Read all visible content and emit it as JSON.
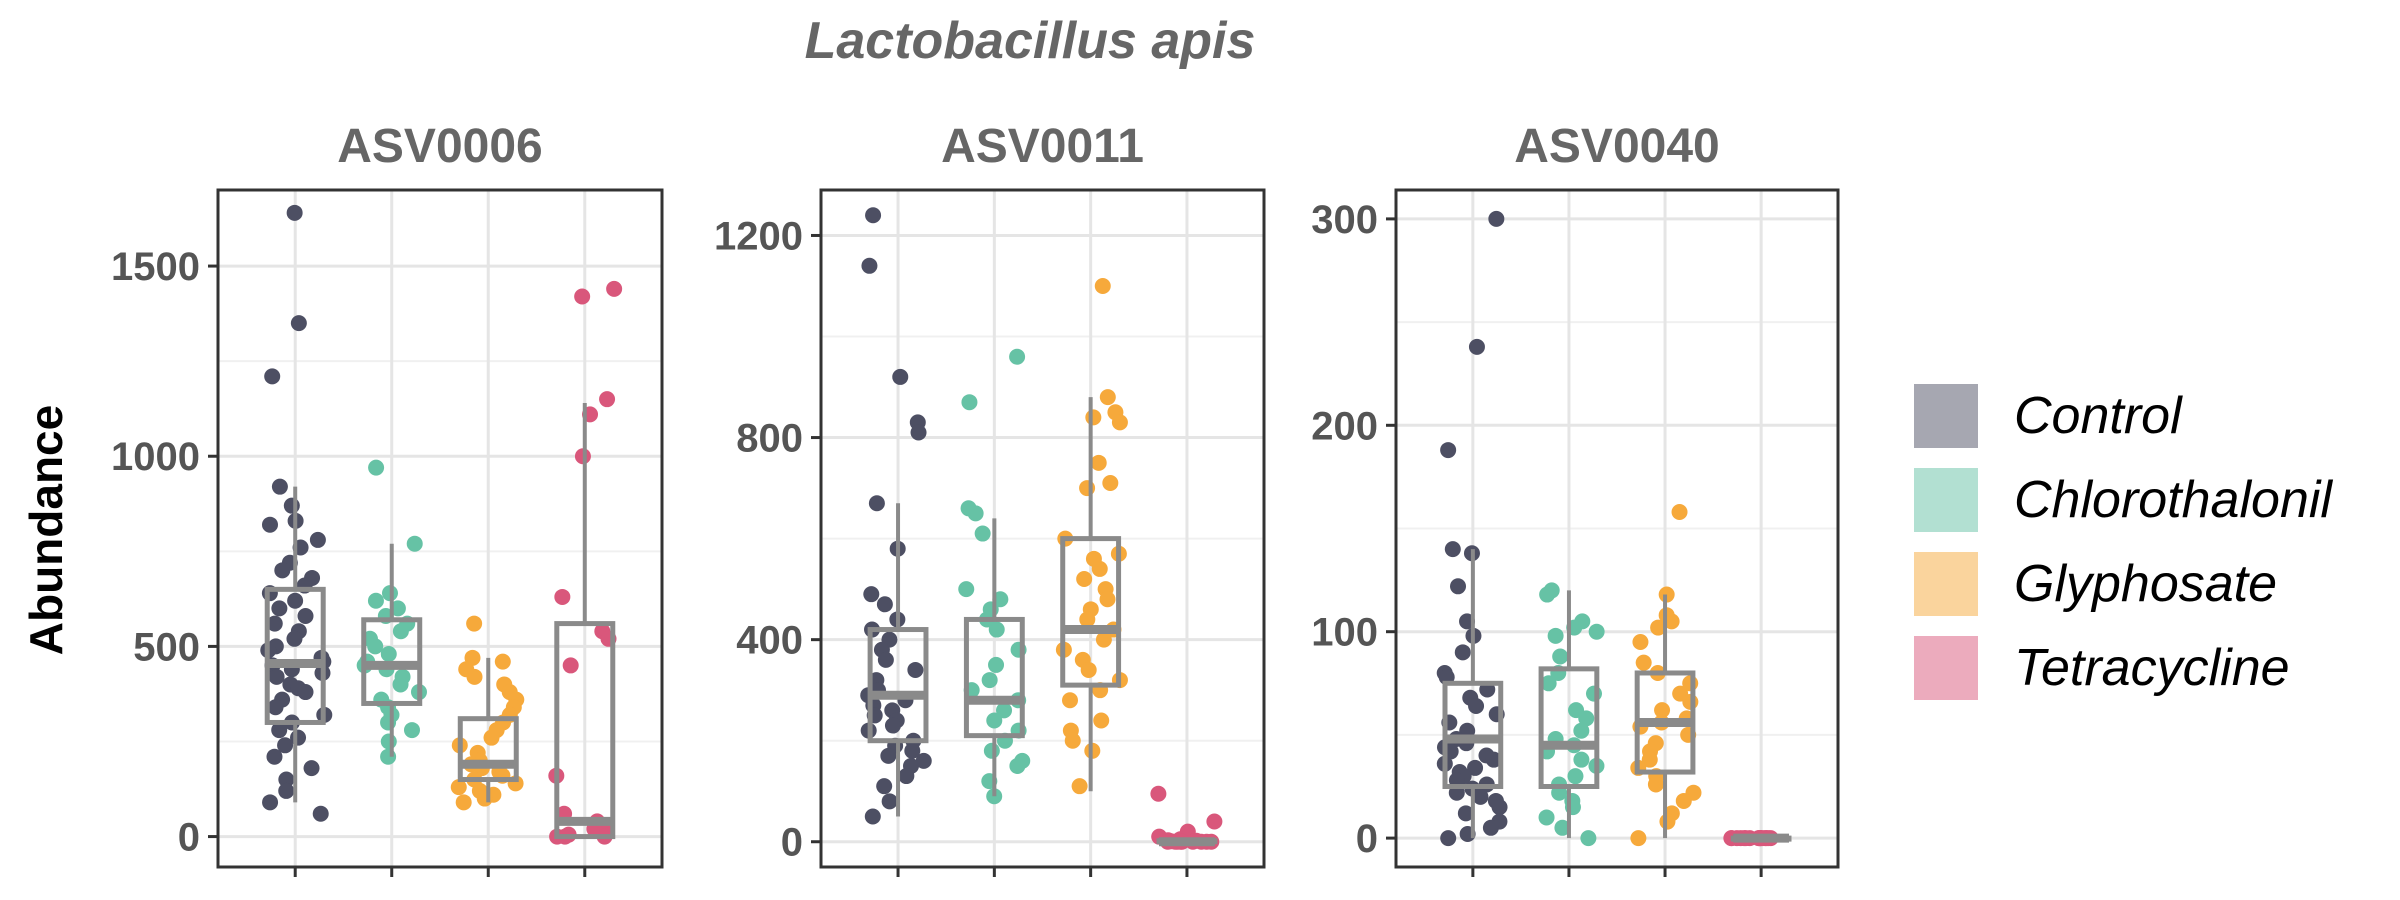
{
  "chart_data": {
    "type": "box+jitter",
    "title": "Lactobacillus apis",
    "ylabel": "Abundance",
    "xlabel": "",
    "groups": [
      "Control",
      "Chlorothalonil",
      "Glyphosate",
      "Tetracycline"
    ],
    "colors": {
      "Control": "#4d4f63",
      "Chlorothalonil": "#66c2a5",
      "Glyphosate": "#f6a93b",
      "Tetracycline": "#d9577b"
    },
    "legend": {
      "position": "right",
      "items": [
        "Control",
        "Chlorothalonil",
        "Glyphosate",
        "Tetracycline"
      ]
    },
    "grid": true,
    "panels": [
      {
        "label": "ASV0006",
        "ylim": [
          -80,
          1700
        ],
        "yticks": [
          0,
          500,
          1000,
          1500
        ],
        "ytick_labels": [
          "0",
          "500",
          "1000",
          "1500"
        ],
        "boxes": [
          {
            "group": "Control",
            "whisker_low": 90,
            "q1": 300,
            "median": 455,
            "q3": 650,
            "whisker_high": 920,
            "points": [
              1640,
              1350,
              1210,
              920,
              870,
              830,
              820,
              780,
              760,
              720,
              700,
              680,
              660,
              640,
              620,
              600,
              580,
              560,
              540,
              520,
              500,
              490,
              470,
              460,
              450,
              440,
              430,
              420,
              400,
              390,
              380,
              360,
              340,
              320,
              300,
              280,
              260,
              240,
              210,
              180,
              150,
              120,
              90,
              60
            ]
          },
          {
            "group": "Chlorothalonil",
            "whisker_low": 210,
            "q1": 350,
            "median": 450,
            "q3": 570,
            "whisker_high": 770,
            "points": [
              970,
              770,
              640,
              620,
              600,
              580,
              560,
              540,
              520,
              500,
              480,
              460,
              450,
              440,
              420,
              400,
              380,
              360,
              340,
              320,
              300,
              280,
              250,
              210
            ]
          },
          {
            "group": "Glyphosate",
            "whisker_low": 90,
            "q1": 150,
            "median": 190,
            "q3": 310,
            "whisker_high": 470,
            "points": [
              560,
              470,
              460,
              440,
              420,
              400,
              380,
              360,
              340,
              320,
              300,
              280,
              260,
              240,
              220,
              200,
              190,
              180,
              170,
              160,
              150,
              140,
              130,
              120,
              110,
              100,
              90
            ]
          },
          {
            "group": "Tetracycline",
            "whisker_low": 0,
            "q1": 0,
            "median": 40,
            "q3": 560,
            "whisker_high": 1140,
            "points": [
              1440,
              1420,
              1150,
              1110,
              1000,
              630,
              540,
              520,
              450,
              160,
              60,
              40,
              30,
              20,
              10,
              5,
              0,
              0,
              0
            ]
          }
        ]
      },
      {
        "label": "ASV0011",
        "ylim": [
          -50,
          1290
        ],
        "yticks": [
          0,
          400,
          800,
          1200
        ],
        "ytick_labels": [
          "0",
          "400",
          "800",
          "1200"
        ],
        "boxes": [
          {
            "group": "Control",
            "whisker_low": 50,
            "q1": 200,
            "median": 290,
            "q3": 420,
            "whisker_high": 670,
            "points": [
              1240,
              1140,
              920,
              830,
              810,
              670,
              580,
              490,
              470,
              440,
              420,
              400,
              380,
              360,
              340,
              320,
              300,
              290,
              280,
              270,
              260,
              250,
              240,
              230,
              220,
              200,
              190,
              180,
              170,
              160,
              150,
              130,
              110,
              80,
              50
            ]
          },
          {
            "group": "Chlorothalonil",
            "whisker_low": 90,
            "q1": 210,
            "median": 280,
            "q3": 440,
            "whisker_high": 640,
            "points": [
              960,
              870,
              660,
              650,
              610,
              500,
              480,
              460,
              440,
              420,
              380,
              350,
              320,
              300,
              280,
              260,
              240,
              220,
              200,
              180,
              160,
              150,
              120,
              90
            ]
          },
          {
            "group": "Glyphosate",
            "whisker_low": 100,
            "q1": 310,
            "median": 420,
            "q3": 600,
            "whisker_high": 880,
            "points": [
              1100,
              880,
              850,
              840,
              830,
              750,
              710,
              700,
              600,
              570,
              560,
              540,
              520,
              500,
              480,
              460,
              440,
              420,
              400,
              380,
              360,
              340,
              320,
              300,
              280,
              240,
              220,
              200,
              180,
              110
            ]
          },
          {
            "group": "Tetracycline",
            "whisker_low": 0,
            "q1": 0,
            "median": 0,
            "q3": 2,
            "whisker_high": 5,
            "points": [
              95,
              40,
              20,
              10,
              5,
              3,
              2,
              1,
              0,
              0,
              0,
              0,
              0,
              0,
              0,
              0,
              0
            ]
          }
        ]
      },
      {
        "label": "ASV0040",
        "ylim": [
          -14,
          314
        ],
        "yticks": [
          0,
          100,
          200,
          300
        ],
        "ytick_labels": [
          "0",
          "100",
          "200",
          "300"
        ],
        "boxes": [
          {
            "group": "Control",
            "whisker_low": 0,
            "q1": 25,
            "median": 48,
            "q3": 75,
            "whisker_high": 140,
            "points": [
              300,
              238,
              188,
              140,
              138,
              122,
              105,
              98,
              90,
              80,
              78,
              72,
              68,
              64,
              60,
              56,
              52,
              48,
              46,
              44,
              42,
              40,
              38,
              36,
              34,
              32,
              30,
              28,
              26,
              24,
              22,
              20,
              18,
              15,
              12,
              8,
              5,
              2,
              0
            ]
          },
          {
            "group": "Chlorothalonil",
            "whisker_low": 0,
            "q1": 25,
            "median": 45,
            "q3": 82,
            "whisker_high": 120,
            "points": [
              120,
              118,
              105,
              102,
              100,
              98,
              88,
              80,
              75,
              70,
              62,
              58,
              52,
              48,
              45,
              42,
              38,
              35,
              30,
              26,
              22,
              18,
              15,
              10,
              5,
              0
            ]
          },
          {
            "group": "Glyphosate",
            "whisker_low": 0,
            "q1": 32,
            "median": 56,
            "q3": 80,
            "whisker_high": 118,
            "points": [
              158,
              118,
              108,
              105,
              102,
              95,
              85,
              80,
              75,
              70,
              66,
              62,
              58,
              56,
              54,
              50,
              46,
              42,
              38,
              34,
              30,
              26,
              22,
              18,
              12,
              8,
              0
            ]
          },
          {
            "group": "Tetracycline",
            "whisker_low": 0,
            "q1": 0,
            "median": 0,
            "q3": 0,
            "whisker_high": 0,
            "points": [
              0,
              0,
              0,
              0,
              0,
              0,
              0,
              0,
              0,
              0,
              0,
              0,
              0,
              0,
              0,
              0,
              0
            ]
          }
        ]
      }
    ]
  }
}
